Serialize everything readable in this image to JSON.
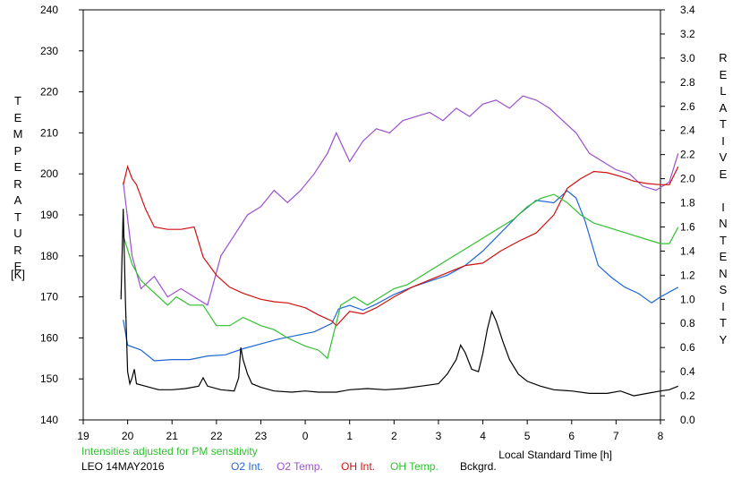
{
  "chart_data": {
    "type": "line",
    "left_axis_label": "TEMPERATURE",
    "left_axis_unit": "[K]",
    "right_axis_label": "RELATIVE INTENSITY",
    "xlabel": "Local Standard Time [h]",
    "note": "Intensities adjusted for PM sensitivity",
    "station": "LEO 14MAY2016",
    "x_ticks": [
      "19",
      "20",
      "21",
      "22",
      "23",
      "0",
      "1",
      "2",
      "3",
      "4",
      "5",
      "6",
      "7",
      "8"
    ],
    "xlim": [
      19,
      32
    ],
    "ylim_left": [
      140,
      240
    ],
    "ylim_right": [
      0.0,
      3.4
    ],
    "y_ticks_left": [
      "140",
      "150",
      "160",
      "170",
      "180",
      "190",
      "200",
      "210",
      "220",
      "230",
      "240"
    ],
    "y_ticks_right": [
      "0.0",
      "0.2",
      "0.4",
      "0.6",
      "0.8",
      "1.0",
      "1.2",
      "1.4",
      "1.6",
      "1.8",
      "2.0",
      "2.2",
      "2.4",
      "2.6",
      "2.8",
      "3.0",
      "3.2",
      "3.4"
    ],
    "legend": [
      "O2 Int.",
      "O2 Temp.",
      "OH Int.",
      "OH Temp.",
      "Bckgrd."
    ],
    "series": [
      {
        "name": "O2 Int.",
        "axis": "right",
        "color": "#1f66d6",
        "points": [
          [
            19.9,
            0.83
          ],
          [
            20.0,
            0.62
          ],
          [
            20.3,
            0.58
          ],
          [
            20.6,
            0.49
          ],
          [
            21.0,
            0.5
          ],
          [
            21.4,
            0.5
          ],
          [
            21.8,
            0.53
          ],
          [
            22.2,
            0.54
          ],
          [
            22.6,
            0.59
          ],
          [
            23.0,
            0.63
          ],
          [
            23.4,
            0.67
          ],
          [
            23.8,
            0.7
          ],
          [
            24.2,
            0.73
          ],
          [
            24.6,
            0.8
          ],
          [
            24.75,
            0.92
          ],
          [
            25.0,
            0.95
          ],
          [
            25.3,
            0.91
          ],
          [
            25.6,
            0.96
          ],
          [
            26.0,
            1.04
          ],
          [
            26.4,
            1.1
          ],
          [
            26.8,
            1.15
          ],
          [
            27.2,
            1.2
          ],
          [
            27.6,
            1.28
          ],
          [
            28.0,
            1.4
          ],
          [
            28.4,
            1.55
          ],
          [
            28.8,
            1.7
          ],
          [
            29.2,
            1.82
          ],
          [
            29.6,
            1.8
          ],
          [
            29.9,
            1.9
          ],
          [
            30.1,
            1.84
          ],
          [
            30.3,
            1.65
          ],
          [
            30.6,
            1.28
          ],
          [
            30.9,
            1.18
          ],
          [
            31.2,
            1.1
          ],
          [
            31.5,
            1.05
          ],
          [
            31.8,
            0.97
          ],
          [
            32.0,
            1.02
          ],
          [
            32.4,
            1.1
          ]
        ]
      },
      {
        "name": "O2 Temp.",
        "axis": "left",
        "color": "#9b4fd0",
        "points": [
          [
            19.9,
            198
          ],
          [
            20.1,
            180
          ],
          [
            20.3,
            172
          ],
          [
            20.6,
            175
          ],
          [
            20.9,
            170
          ],
          [
            21.2,
            172
          ],
          [
            21.5,
            170
          ],
          [
            21.8,
            168
          ],
          [
            22.1,
            180
          ],
          [
            22.4,
            185
          ],
          [
            22.7,
            190
          ],
          [
            23.0,
            192
          ],
          [
            23.3,
            196
          ],
          [
            23.6,
            193
          ],
          [
            23.9,
            196
          ],
          [
            24.2,
            200
          ],
          [
            24.5,
            205
          ],
          [
            24.7,
            210
          ],
          [
            25.0,
            203
          ],
          [
            25.3,
            208
          ],
          [
            25.6,
            211
          ],
          [
            25.9,
            210
          ],
          [
            26.2,
            213
          ],
          [
            26.5,
            214
          ],
          [
            26.8,
            215
          ],
          [
            27.1,
            213
          ],
          [
            27.4,
            216
          ],
          [
            27.7,
            214
          ],
          [
            28.0,
            217
          ],
          [
            28.3,
            218
          ],
          [
            28.6,
            216
          ],
          [
            28.9,
            219
          ],
          [
            29.2,
            218
          ],
          [
            29.5,
            216
          ],
          [
            29.8,
            213
          ],
          [
            30.1,
            210
          ],
          [
            30.4,
            205
          ],
          [
            30.7,
            203
          ],
          [
            31.0,
            201
          ],
          [
            31.3,
            200
          ],
          [
            31.6,
            197
          ],
          [
            31.9,
            196
          ],
          [
            32.2,
            198
          ],
          [
            32.4,
            205
          ]
        ]
      },
      {
        "name": "OH Int.",
        "axis": "right",
        "color": "#d01010",
        "points": [
          [
            19.9,
            1.95
          ],
          [
            20.0,
            2.1
          ],
          [
            20.1,
            2.0
          ],
          [
            20.2,
            1.95
          ],
          [
            20.4,
            1.75
          ],
          [
            20.6,
            1.6
          ],
          [
            20.9,
            1.58
          ],
          [
            21.2,
            1.58
          ],
          [
            21.5,
            1.6
          ],
          [
            21.7,
            1.35
          ],
          [
            22.0,
            1.2
          ],
          [
            22.3,
            1.1
          ],
          [
            22.6,
            1.05
          ],
          [
            23.0,
            1.0
          ],
          [
            23.3,
            0.98
          ],
          [
            23.6,
            0.97
          ],
          [
            24.0,
            0.93
          ],
          [
            24.3,
            0.87
          ],
          [
            24.6,
            0.82
          ],
          [
            24.7,
            0.78
          ],
          [
            25.0,
            0.9
          ],
          [
            25.3,
            0.88
          ],
          [
            25.6,
            0.93
          ],
          [
            26.0,
            1.02
          ],
          [
            26.4,
            1.1
          ],
          [
            26.8,
            1.16
          ],
          [
            27.2,
            1.22
          ],
          [
            27.6,
            1.28
          ],
          [
            28.0,
            1.3
          ],
          [
            28.4,
            1.4
          ],
          [
            28.8,
            1.48
          ],
          [
            29.2,
            1.55
          ],
          [
            29.6,
            1.7
          ],
          [
            29.9,
            1.92
          ],
          [
            30.2,
            2.0
          ],
          [
            30.5,
            2.06
          ],
          [
            30.8,
            2.05
          ],
          [
            31.1,
            2.02
          ],
          [
            31.4,
            1.98
          ],
          [
            31.7,
            1.96
          ],
          [
            32.0,
            1.95
          ],
          [
            32.2,
            1.95
          ],
          [
            32.4,
            2.1
          ]
        ]
      },
      {
        "name": "OH Temp.",
        "axis": "left",
        "color": "#2fc02f",
        "points": [
          [
            19.9,
            185
          ],
          [
            20.1,
            178
          ],
          [
            20.3,
            174
          ],
          [
            20.5,
            172
          ],
          [
            20.7,
            170
          ],
          [
            20.9,
            168
          ],
          [
            21.1,
            170
          ],
          [
            21.4,
            168
          ],
          [
            21.7,
            168
          ],
          [
            22.0,
            163
          ],
          [
            22.3,
            163
          ],
          [
            22.6,
            165
          ],
          [
            23.0,
            163
          ],
          [
            23.3,
            162
          ],
          [
            23.6,
            160
          ],
          [
            24.0,
            158
          ],
          [
            24.3,
            157
          ],
          [
            24.5,
            155
          ],
          [
            24.8,
            168
          ],
          [
            25.1,
            170
          ],
          [
            25.4,
            168
          ],
          [
            25.7,
            170
          ],
          [
            26.0,
            172
          ],
          [
            26.3,
            173
          ],
          [
            26.6,
            175
          ],
          [
            26.9,
            177
          ],
          [
            27.2,
            179
          ],
          [
            27.5,
            181
          ],
          [
            27.8,
            183
          ],
          [
            28.1,
            185
          ],
          [
            28.4,
            187
          ],
          [
            28.7,
            189
          ],
          [
            29.0,
            192
          ],
          [
            29.3,
            194
          ],
          [
            29.6,
            195
          ],
          [
            29.9,
            193
          ],
          [
            30.2,
            190
          ],
          [
            30.5,
            188
          ],
          [
            30.8,
            187
          ],
          [
            31.1,
            186
          ],
          [
            31.4,
            185
          ],
          [
            31.7,
            184
          ],
          [
            32.0,
            183
          ],
          [
            32.2,
            183
          ],
          [
            32.4,
            187
          ]
        ]
      },
      {
        "name": "Bckgrd.",
        "axis": "right",
        "color": "#000000",
        "points": [
          [
            19.85,
            1.0
          ],
          [
            19.9,
            1.75
          ],
          [
            19.95,
            1.0
          ],
          [
            20.0,
            0.4
          ],
          [
            20.05,
            0.3
          ],
          [
            20.1,
            0.35
          ],
          [
            20.15,
            0.42
          ],
          [
            20.2,
            0.3
          ],
          [
            20.4,
            0.28
          ],
          [
            20.7,
            0.25
          ],
          [
            21.0,
            0.25
          ],
          [
            21.3,
            0.26
          ],
          [
            21.6,
            0.28
          ],
          [
            21.7,
            0.35
          ],
          [
            21.8,
            0.28
          ],
          [
            22.1,
            0.25
          ],
          [
            22.4,
            0.24
          ],
          [
            22.5,
            0.35
          ],
          [
            22.55,
            0.6
          ],
          [
            22.6,
            0.5
          ],
          [
            22.7,
            0.38
          ],
          [
            22.8,
            0.3
          ],
          [
            23.0,
            0.27
          ],
          [
            23.3,
            0.24
          ],
          [
            23.7,
            0.23
          ],
          [
            24.0,
            0.24
          ],
          [
            24.3,
            0.23
          ],
          [
            24.7,
            0.23
          ],
          [
            25.0,
            0.25
          ],
          [
            25.4,
            0.26
          ],
          [
            25.8,
            0.25
          ],
          [
            26.2,
            0.26
          ],
          [
            26.6,
            0.28
          ],
          [
            27.0,
            0.3
          ],
          [
            27.2,
            0.38
          ],
          [
            27.4,
            0.5
          ],
          [
            27.5,
            0.62
          ],
          [
            27.6,
            0.56
          ],
          [
            27.75,
            0.42
          ],
          [
            27.9,
            0.4
          ],
          [
            28.0,
            0.55
          ],
          [
            28.1,
            0.75
          ],
          [
            28.2,
            0.9
          ],
          [
            28.3,
            0.82
          ],
          [
            28.45,
            0.65
          ],
          [
            28.6,
            0.5
          ],
          [
            28.8,
            0.38
          ],
          [
            29.0,
            0.32
          ],
          [
            29.3,
            0.28
          ],
          [
            29.6,
            0.25
          ],
          [
            30.0,
            0.24
          ],
          [
            30.4,
            0.22
          ],
          [
            30.8,
            0.22
          ],
          [
            31.1,
            0.24
          ],
          [
            31.4,
            0.2
          ],
          [
            31.7,
            0.22
          ],
          [
            32.0,
            0.24
          ],
          [
            32.2,
            0.25
          ],
          [
            32.4,
            0.28
          ]
        ]
      }
    ]
  },
  "colors": {
    "note": "#2fc02f",
    "legend": [
      "#1f66d6",
      "#9b4fd0",
      "#d01010",
      "#2fc02f",
      "#000000"
    ]
  }
}
